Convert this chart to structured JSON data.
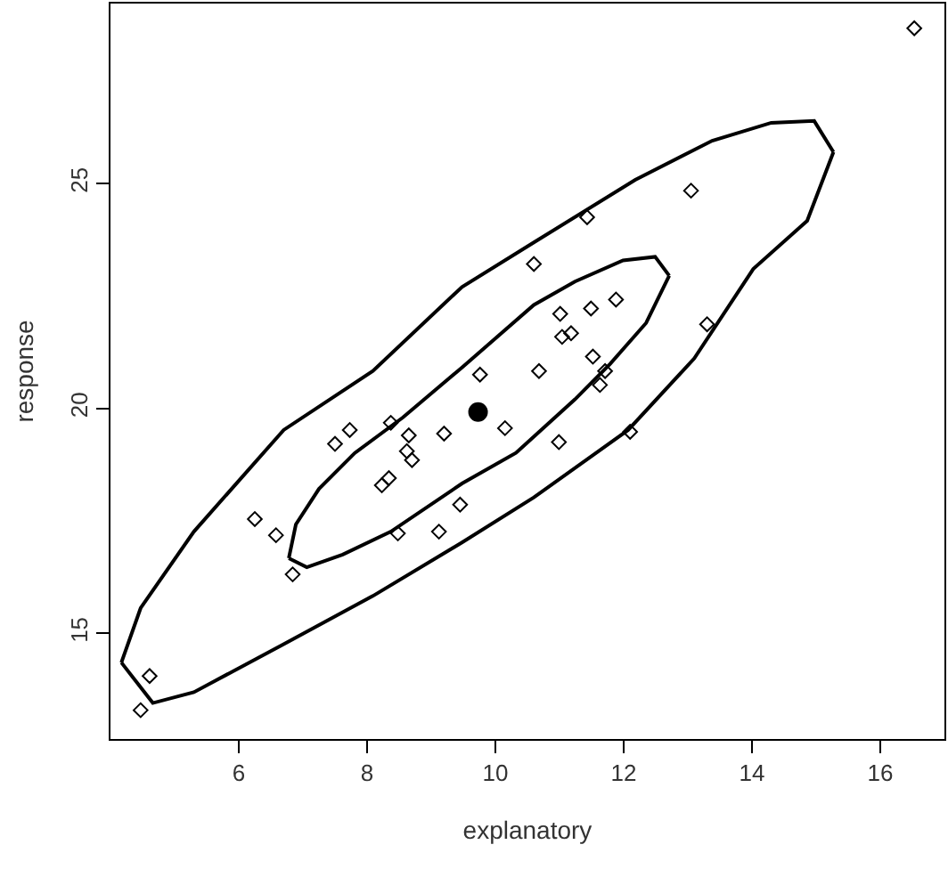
{
  "chart_data": {
    "type": "scatter",
    "xlabel": "explanatory",
    "ylabel": "response",
    "xlim": [
      4.0,
      17.0
    ],
    "ylim": [
      12.65,
      29.0
    ],
    "xticks": [
      6,
      8,
      10,
      12,
      14,
      16
    ],
    "yticks": [
      15,
      20,
      25
    ],
    "grid": false,
    "series": [
      {
        "marker": "diamond",
        "color": "#000000",
        "x": [
          16.53,
          13.05,
          11.43,
          10.6,
          11.88,
          11.49,
          11.01,
          11.18,
          11.04,
          11.52,
          10.68,
          11.71,
          13.3,
          9.76,
          10.15,
          8.37,
          8.65,
          9.2,
          7.73,
          7.5,
          8.62,
          8.7,
          8.34,
          8.23,
          9.45,
          9.12,
          8.48,
          6.25,
          6.58,
          6.84,
          4.61,
          4.47,
          11.63,
          10.99,
          12.1
        ],
        "values": [
          28.45,
          24.84,
          24.25,
          23.21,
          22.42,
          22.22,
          22.1,
          21.67,
          21.59,
          21.15,
          20.83,
          20.83,
          21.87,
          20.75,
          19.56,
          19.68,
          19.4,
          19.44,
          19.52,
          19.21,
          19.05,
          18.85,
          18.45,
          18.29,
          17.86,
          17.26,
          17.22,
          17.54,
          17.18,
          16.31,
          14.05,
          13.29,
          20.52,
          19.25,
          19.48
        ]
      },
      {
        "marker": "circle",
        "color": "#000000",
        "x": [
          9.73
        ],
        "values": [
          19.92
        ]
      },
      {
        "type": "line",
        "marker": "none",
        "color": "#000000",
        "x": [
          4.17,
          4.47,
          5.3,
          6.7,
          8.09,
          9.48,
          10.6,
          12.18,
          13.38,
          14.3,
          14.97,
          15.27
        ],
        "values": [
          14.35,
          15.56,
          17.26,
          19.52,
          20.83,
          22.7,
          23.69,
          25.08,
          25.95,
          26.35,
          26.39,
          25.7
        ]
      },
      {
        "type": "line",
        "marker": "none",
        "color": "#000000",
        "x": [
          4.17,
          4.66,
          5.3,
          6.7,
          8.09,
          9.48,
          10.6,
          12.07,
          13.1,
          14.02,
          14.86,
          15.27
        ],
        "values": [
          14.35,
          13.45,
          13.69,
          14.76,
          15.83,
          17.02,
          18.02,
          19.52,
          21.11,
          23.1,
          24.17,
          25.7
        ]
      },
      {
        "type": "line",
        "marker": "none",
        "color": "#000000",
        "x": [
          6.78,
          6.89,
          7.25,
          7.81,
          8.56,
          9.48,
          10.6,
          11.24,
          11.99,
          12.49,
          12.71
        ],
        "values": [
          16.67,
          17.42,
          18.21,
          19.01,
          19.8,
          20.91,
          22.3,
          22.82,
          23.29,
          23.37,
          22.95
        ]
      },
      {
        "type": "line",
        "marker": "none",
        "color": "#000000",
        "x": [
          6.78,
          7.06,
          7.62,
          8.37,
          9.48,
          10.32,
          11.24,
          11.79,
          12.35,
          12.71
        ],
        "values": [
          16.67,
          16.47,
          16.75,
          17.26,
          18.33,
          19.01,
          20.2,
          20.99,
          21.9,
          22.95
        ]
      }
    ]
  }
}
